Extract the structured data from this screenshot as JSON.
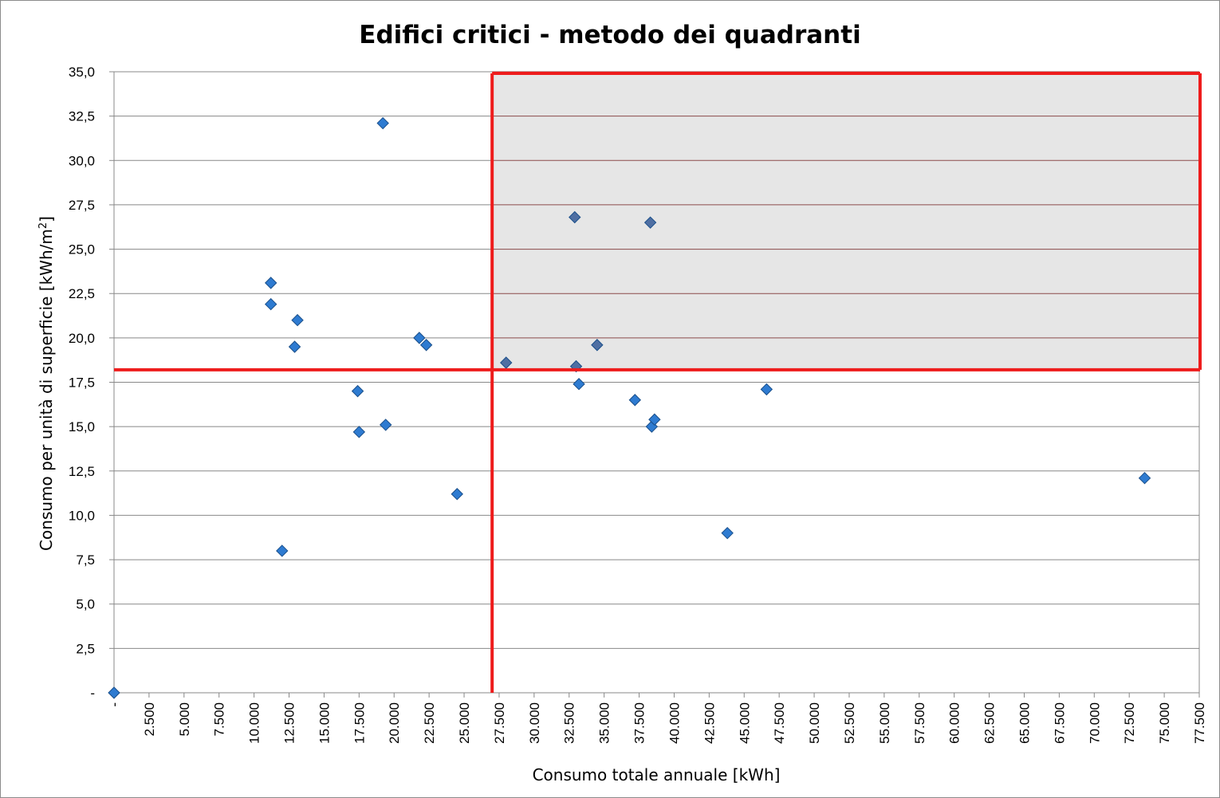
{
  "colors": {
    "point": "#2e7bd1",
    "point_stroke": "#1a4f8a",
    "highlight_line": "#ee1c1c",
    "quadrant_fill": "#e6e6e6",
    "grid": "#888888",
    "quadrant_grid": "#8b4a4a"
  },
  "chart_data": {
    "type": "scatter",
    "title": "Edifici critici - metodo dei quadranti",
    "xlabel": "Consumo totale annuale [kWh]",
    "ylabel_main": "Consumo per unità di superficie [kWh/m",
    "ylabel_sup": "2",
    "ylabel_end": "]",
    "xlim": [
      0,
      77500
    ],
    "ylim": [
      0,
      35
    ],
    "x_ticks": [
      0,
      2500,
      5000,
      7500,
      10000,
      12500,
      15000,
      17500,
      20000,
      22500,
      25000,
      27500,
      30000,
      32500,
      35000,
      37500,
      40000,
      42500,
      45000,
      47500,
      50000,
      52500,
      55000,
      57500,
      60000,
      62500,
      65000,
      67500,
      70000,
      72500,
      75000,
      77500
    ],
    "x_tick_labels": [
      "-",
      "2.500",
      "5.000",
      "7.500",
      "10.000",
      "12.500",
      "15.000",
      "17.500",
      "20.000",
      "22.500",
      "25.000",
      "27.500",
      "30.000",
      "32.500",
      "35.000",
      "37.500",
      "40.000",
      "42.500",
      "45.000",
      "47.500",
      "50.000",
      "52.500",
      "55.000",
      "57.500",
      "60.000",
      "62.500",
      "65.000",
      "67.500",
      "70.000",
      "72.500",
      "75.000",
      "77.500"
    ],
    "y_ticks": [
      0,
      2.5,
      5,
      7.5,
      10,
      12.5,
      15,
      17.5,
      20,
      22.5,
      25,
      27.5,
      30,
      32.5,
      35
    ],
    "y_tick_labels": [
      "-",
      "2,5",
      "5,0",
      "7,5",
      "10,0",
      "12,5",
      "15,0",
      "17,5",
      "20,0",
      "22,5",
      "25,0",
      "27,5",
      "30,0",
      "32,5",
      "35,0"
    ],
    "grid": "horizontal",
    "legend": "none",
    "quadrant": {
      "x_threshold": 27000,
      "y_threshold": 18.2
    },
    "points": [
      {
        "x": 0,
        "y": 0
      },
      {
        "x": 11200,
        "y": 23.1
      },
      {
        "x": 11200,
        "y": 21.9
      },
      {
        "x": 12000,
        "y": 8.0
      },
      {
        "x": 12900,
        "y": 19.5
      },
      {
        "x": 13100,
        "y": 21.0
      },
      {
        "x": 17400,
        "y": 17.0
      },
      {
        "x": 17500,
        "y": 14.7
      },
      {
        "x": 19200,
        "y": 32.1
      },
      {
        "x": 19400,
        "y": 15.1
      },
      {
        "x": 21800,
        "y": 20.0
      },
      {
        "x": 22300,
        "y": 19.6
      },
      {
        "x": 24500,
        "y": 11.2
      },
      {
        "x": 28000,
        "y": 18.6
      },
      {
        "x": 32900,
        "y": 26.8
      },
      {
        "x": 33000,
        "y": 18.4
      },
      {
        "x": 33200,
        "y": 17.4
      },
      {
        "x": 34500,
        "y": 19.6
      },
      {
        "x": 37200,
        "y": 16.5
      },
      {
        "x": 38300,
        "y": 26.5
      },
      {
        "x": 38400,
        "y": 15.0
      },
      {
        "x": 38600,
        "y": 15.4
      },
      {
        "x": 43800,
        "y": 9.0
      },
      {
        "x": 46600,
        "y": 17.1
      },
      {
        "x": 73600,
        "y": 12.1
      }
    ]
  }
}
